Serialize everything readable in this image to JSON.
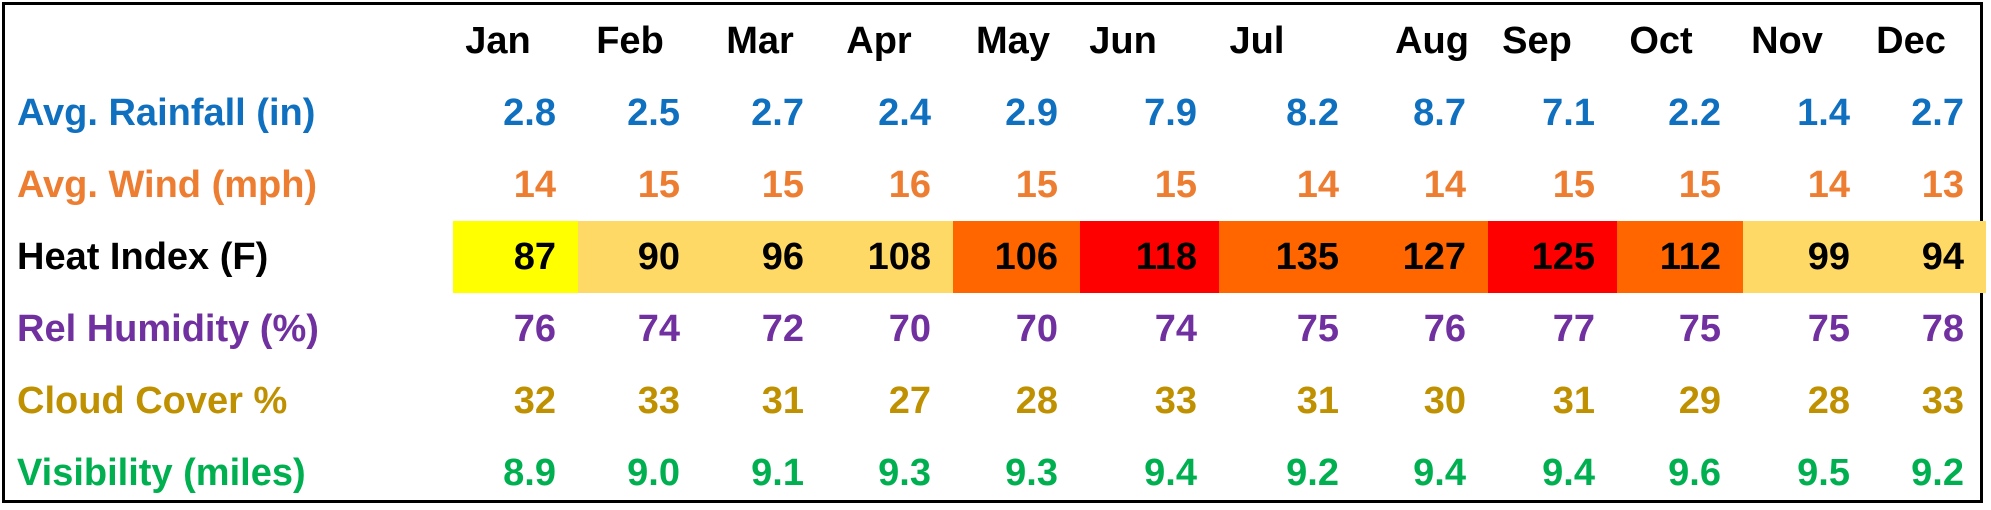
{
  "chart_data": {
    "type": "table",
    "months": [
      "Jan",
      "Feb",
      "Mar",
      "Apr",
      "May",
      "Jun",
      "Jul",
      "Aug",
      "Sep",
      "Oct",
      "Nov",
      "Dec"
    ],
    "rows": [
      {
        "label": "Avg. Rainfall (in)",
        "color": "#1070c0",
        "values": [
          "2.8",
          "2.5",
          "2.7",
          "2.4",
          "2.9",
          "7.9",
          "8.2",
          "8.7",
          "7.1",
          "2.2",
          "1.4",
          "2.7"
        ]
      },
      {
        "label": "Avg. Wind (mph)",
        "color": "#ed7d31",
        "values": [
          "14",
          "15",
          "15",
          "16",
          "15",
          "15",
          "14",
          "14",
          "15",
          "15",
          "14",
          "13"
        ]
      },
      {
        "label": "Heat Index (F)",
        "color": "#000000",
        "values": [
          "87",
          "90",
          "96",
          "108",
          "106",
          "118",
          "135",
          "127",
          "125",
          "112",
          "99",
          "94"
        ],
        "cell_colors": [
          "#ffff00",
          "#ffd966",
          "#ffd966",
          "#ffd966",
          "#ff6600",
          "#ff0000",
          "#ff6600",
          "#ff6600",
          "#ff0000",
          "#ff6600",
          "#ffd966",
          "#ffd966"
        ]
      },
      {
        "label": "Rel Humidity (%)",
        "color": "#7030a0",
        "values": [
          "76",
          "74",
          "72",
          "70",
          "70",
          "74",
          "75",
          "76",
          "77",
          "75",
          "75",
          "78"
        ]
      },
      {
        "label": "Cloud Cover %",
        "color": "#bf9000",
        "values": [
          "32",
          "33",
          "31",
          "27",
          "28",
          "33",
          "31",
          "30",
          "31",
          "29",
          "28",
          "33"
        ]
      },
      {
        "label": "Visibility (miles)",
        "color": "#00b050",
        "values": [
          "8.9",
          "9.0",
          "9.1",
          "9.3",
          "9.3",
          "9.4",
          "9.2",
          "9.4",
          "9.4",
          "9.6",
          "9.5",
          "9.2"
        ]
      }
    ]
  }
}
